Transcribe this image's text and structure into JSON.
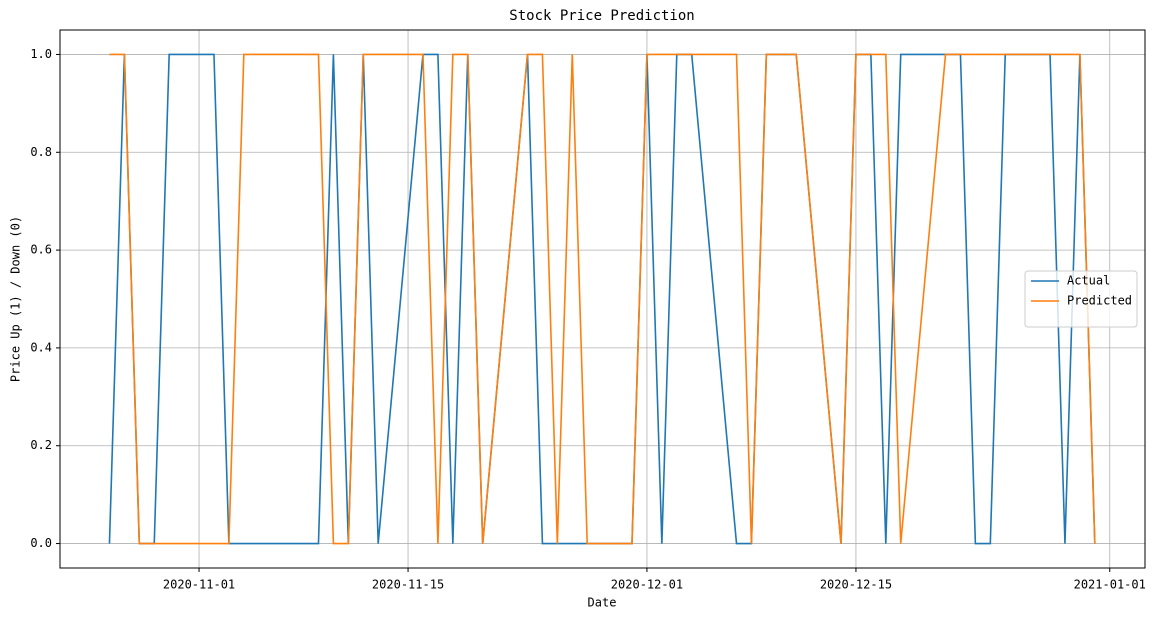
{
  "chart_data": {
    "type": "line",
    "title": "Stock Price Prediction",
    "x_label": "Date",
    "y_label": "Price Up (1) / Down (0)",
    "x": [
      "2020-10-26",
      "2020-10-27",
      "2020-10-28",
      "2020-10-29",
      "2020-10-30",
      "2020-11-02",
      "2020-11-03",
      "2020-11-04",
      "2020-11-05",
      "2020-11-06",
      "2020-11-09",
      "2020-11-10",
      "2020-11-11",
      "2020-11-12",
      "2020-11-13",
      "2020-11-16",
      "2020-11-17",
      "2020-11-18",
      "2020-11-19",
      "2020-11-20",
      "2020-11-23",
      "2020-11-24",
      "2020-11-25",
      "2020-11-26",
      "2020-11-27",
      "2020-11-30",
      "2020-12-01",
      "2020-12-02",
      "2020-12-03",
      "2020-12-04",
      "2020-12-07",
      "2020-12-08",
      "2020-12-09",
      "2020-12-10",
      "2020-12-11",
      "2020-12-14",
      "2020-12-15",
      "2020-12-16",
      "2020-12-17",
      "2020-12-18",
      "2020-12-21",
      "2020-12-22",
      "2020-12-23",
      "2020-12-24",
      "2020-12-25",
      "2020-12-28",
      "2020-12-29",
      "2020-12-30",
      "2020-12-31"
    ],
    "series": [
      {
        "name": "Actual",
        "color": "#1f77b4",
        "values": [
          0,
          1,
          0,
          0,
          1,
          1,
          0,
          0,
          0,
          0,
          0,
          1,
          0,
          1,
          0,
          1,
          1,
          0,
          1,
          0,
          1,
          0,
          0,
          0,
          0,
          0,
          1,
          0,
          1,
          1,
          0,
          0,
          1,
          1,
          1,
          0,
          1,
          1,
          0,
          1,
          1,
          1,
          0,
          0,
          1,
          1,
          0,
          1,
          0
        ]
      },
      {
        "name": "Predicted",
        "color": "#ff7f0e",
        "values": [
          1,
          1,
          0,
          0,
          0,
          0,
          0,
          1,
          1,
          1,
          1,
          0,
          0,
          1,
          1,
          1,
          0,
          1,
          1,
          0,
          1,
          1,
          0,
          1,
          0,
          0,
          1,
          1,
          1,
          1,
          1,
          0,
          1,
          1,
          1,
          0,
          1,
          1,
          1,
          0,
          1,
          1,
          1,
          1,
          1,
          1,
          1,
          1,
          0
        ]
      }
    ],
    "xlim": [
      "2020-10-22T16:30",
      "2021-01-03T08:40"
    ],
    "xticks": [
      "2020-11-01",
      "2020-11-15",
      "2020-12-01",
      "2020-12-15",
      "2021-01-01"
    ],
    "ylim": [
      -0.05,
      1.05
    ],
    "yticks": [
      {
        "value": 0,
        "label": "0.0"
      },
      0.2,
      0.4,
      0.6,
      0.8,
      {
        "value": 1,
        "label": "1.0"
      }
    ],
    "grid": true,
    "legend": "center right"
  }
}
